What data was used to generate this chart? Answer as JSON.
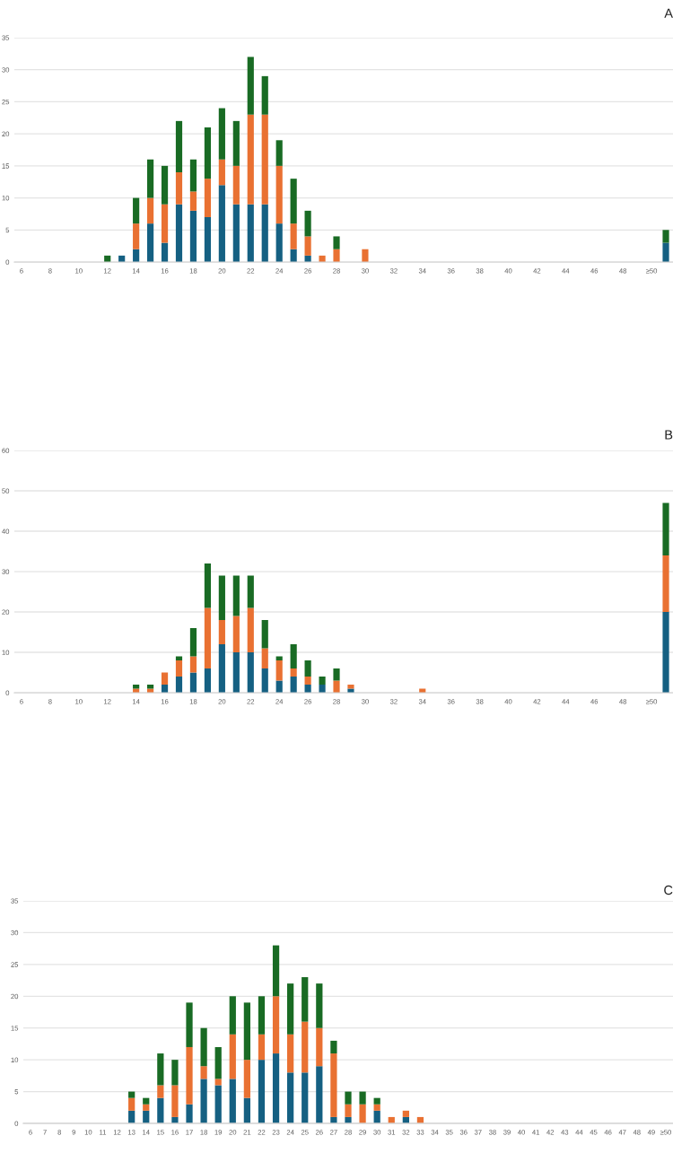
{
  "chart_data": [
    {
      "type": "bar",
      "title": "A",
      "stacked": true,
      "grid": "y",
      "ylim": [
        0,
        35
      ],
      "yticks": [
        0,
        5,
        10,
        15,
        20,
        25,
        30,
        35
      ],
      "categories": [
        "6",
        null,
        "8",
        null,
        "10",
        null,
        "12",
        null,
        "14",
        null,
        "16",
        null,
        "18",
        null,
        "20",
        null,
        "22",
        null,
        "24",
        null,
        "26",
        null,
        "28",
        null,
        "30",
        null,
        "32",
        null,
        "34",
        null,
        "36",
        null,
        "38",
        null,
        "40",
        null,
        "42",
        null,
        "44",
        null,
        "46",
        null,
        "48",
        null,
        "≥50",
        null
      ],
      "series": [
        {
          "color": "#156082",
          "values": [
            null,
            null,
            null,
            null,
            null,
            null,
            null,
            1,
            2,
            6,
            3,
            9,
            8,
            7,
            12,
            9,
            9,
            9,
            6,
            2,
            1,
            null,
            null,
            null,
            null,
            null,
            null,
            null,
            null,
            null,
            null,
            null,
            null,
            null,
            null,
            null,
            null,
            null,
            null,
            null,
            null,
            null,
            null,
            null,
            null,
            3
          ]
        },
        {
          "color": "#e97132",
          "values": [
            null,
            null,
            null,
            null,
            null,
            null,
            null,
            null,
            4,
            4,
            6,
            5,
            3,
            6,
            4,
            6,
            14,
            14,
            9,
            4,
            3,
            1,
            2,
            null,
            2,
            null,
            null,
            null,
            null,
            null,
            null,
            null,
            null,
            null,
            null,
            null,
            null,
            null,
            null,
            null,
            null,
            null,
            null,
            null,
            null,
            null
          ]
        },
        {
          "color": "#196b24",
          "values": [
            null,
            null,
            null,
            null,
            null,
            null,
            1,
            null,
            4,
            6,
            6,
            8,
            5,
            8,
            8,
            7,
            9,
            6,
            4,
            7,
            4,
            null,
            2,
            null,
            null,
            null,
            null,
            null,
            null,
            null,
            null,
            null,
            null,
            null,
            null,
            null,
            null,
            null,
            null,
            null,
            null,
            null,
            null,
            null,
            null,
            2
          ]
        }
      ]
    },
    {
      "type": "bar",
      "title": "B",
      "stacked": true,
      "grid": "y",
      "ylim": [
        0,
        60
      ],
      "yticks": [
        0,
        10,
        20,
        30,
        40,
        50,
        60
      ],
      "categories": [
        "6",
        null,
        "8",
        null,
        "10",
        null,
        "12",
        null,
        "14",
        null,
        "16",
        null,
        "18",
        null,
        "20",
        null,
        "22",
        null,
        "24",
        null,
        "26",
        null,
        "28",
        null,
        "30",
        null,
        "32",
        null,
        "34",
        null,
        "36",
        null,
        "38",
        null,
        "40",
        null,
        "42",
        null,
        "44",
        null,
        "46",
        null,
        "48",
        null,
        "≥50",
        null
      ],
      "series": [
        {
          "color": "#156082",
          "values": [
            null,
            null,
            null,
            null,
            null,
            null,
            null,
            null,
            null,
            null,
            2,
            4,
            5,
            6,
            12,
            10,
            10,
            6,
            3,
            4,
            2,
            2,
            null,
            1,
            null,
            null,
            null,
            null,
            null,
            null,
            null,
            null,
            null,
            null,
            null,
            null,
            null,
            null,
            null,
            null,
            null,
            null,
            null,
            null,
            null,
            20
          ]
        },
        {
          "color": "#e97132",
          "values": [
            null,
            null,
            null,
            null,
            null,
            null,
            null,
            null,
            1,
            1,
            3,
            4,
            4,
            15,
            6,
            9,
            11,
            5,
            5,
            2,
            2,
            null,
            3,
            1,
            null,
            null,
            null,
            null,
            1,
            null,
            null,
            null,
            null,
            null,
            null,
            null,
            null,
            null,
            null,
            null,
            null,
            null,
            null,
            null,
            null,
            14
          ]
        },
        {
          "color": "#196b24",
          "values": [
            null,
            null,
            null,
            null,
            null,
            null,
            null,
            null,
            1,
            1,
            null,
            1,
            7,
            11,
            11,
            10,
            8,
            7,
            1,
            6,
            4,
            2,
            3,
            null,
            null,
            null,
            null,
            null,
            null,
            null,
            null,
            null,
            null,
            null,
            null,
            null,
            null,
            null,
            null,
            null,
            null,
            null,
            null,
            null,
            null,
            13
          ]
        }
      ]
    },
    {
      "type": "bar",
      "title": "C",
      "stacked": true,
      "grid": "y",
      "ylim": [
        0,
        35
      ],
      "yticks": [
        0,
        5,
        10,
        15,
        20,
        25,
        30,
        35
      ],
      "categories": [
        "6",
        "7",
        "8",
        "9",
        "10",
        "11",
        "12",
        "13",
        "14",
        "15",
        "16",
        "17",
        "18",
        "19",
        "20",
        "21",
        "22",
        "23",
        "24",
        "25",
        "26",
        "27",
        "28",
        "29",
        "30",
        "31",
        "32",
        "33",
        "34",
        "35",
        "36",
        "37",
        "38",
        "39",
        "40",
        "41",
        "42",
        "43",
        "44",
        "45",
        "46",
        "47",
        "48",
        "49",
        "≥50"
      ],
      "series": [
        {
          "color": "#156082",
          "values": [
            null,
            null,
            null,
            null,
            null,
            null,
            null,
            2,
            2,
            4,
            1,
            3,
            7,
            6,
            7,
            4,
            10,
            11,
            8,
            8,
            9,
            1,
            1,
            null,
            2,
            null,
            1,
            null,
            null,
            null,
            null,
            null,
            null,
            null,
            null,
            null,
            null,
            null,
            null,
            null,
            null,
            null,
            null,
            null,
            null
          ]
        },
        {
          "color": "#e97132",
          "values": [
            null,
            null,
            null,
            null,
            null,
            null,
            null,
            2,
            1,
            2,
            5,
            9,
            2,
            1,
            7,
            6,
            4,
            9,
            6,
            8,
            6,
            10,
            2,
            3,
            1,
            1,
            1,
            1,
            null,
            null,
            null,
            null,
            null,
            null,
            null,
            null,
            null,
            null,
            null,
            null,
            null,
            null,
            null,
            null,
            null
          ]
        },
        {
          "color": "#196b24",
          "values": [
            null,
            null,
            null,
            null,
            null,
            null,
            null,
            1,
            1,
            5,
            4,
            7,
            6,
            5,
            6,
            9,
            6,
            8,
            8,
            7,
            7,
            2,
            2,
            2,
            1,
            null,
            null,
            null,
            null,
            null,
            null,
            null,
            null,
            null,
            null,
            null,
            null,
            null,
            null,
            null,
            null,
            null,
            null,
            null,
            null
          ]
        }
      ]
    }
  ]
}
